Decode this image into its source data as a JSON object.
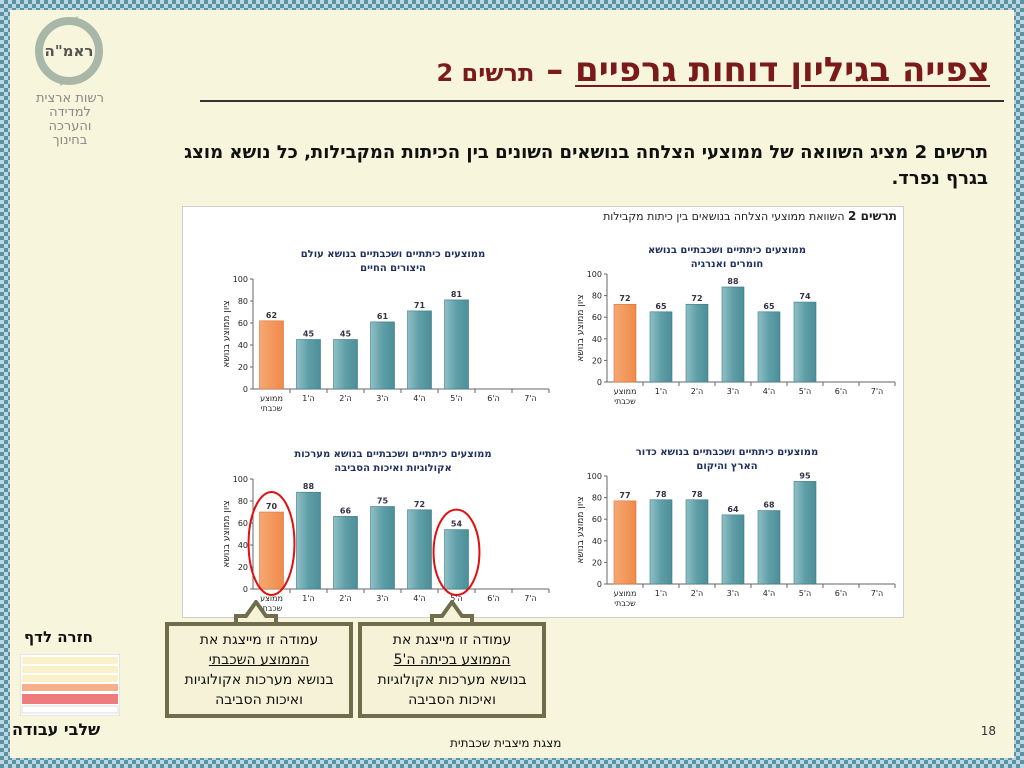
{
  "logo": {
    "text": "ראמ\"ה",
    "org": [
      "רשות ארצית",
      "למדידה",
      "והערכה",
      "בחינוך"
    ]
  },
  "title": {
    "main": "צפייה בגיליון דוחות גרפיים",
    "dash": " – ",
    "sub": "תרשים 2"
  },
  "description": "תרשים 2 מציג השוואה של ממוצעי הצלחה בנושאים השונים בין הכיתות המקבילות, כל נושא מוצג בגרף נפרד.",
  "sheet": {
    "title_bold": "תרשים 2",
    "title_rest": " השוואת ממוצעי הצלחה בנושאים בין כיתות מקבילות"
  },
  "colors": {
    "school_bar": "#f08a4b",
    "class_bar": "#4b8f98",
    "circle": "#e01010",
    "callout_border": "#6f6d4c"
  },
  "chart_data": [
    {
      "type": "bar",
      "title": "ממוצעים כיתתיים ושכבתיים בנושא חומרים ואנרגיה",
      "ylabel": "ציון ממוצע בנושא",
      "ylim": [
        0,
        100
      ],
      "yticks": [
        "0",
        "20",
        "40",
        "60",
        "80",
        "100"
      ],
      "categories": [
        "ממוצע שכבתי",
        "ה'1",
        "ה'2",
        "ה'3",
        "ה'4",
        "ה'5",
        "ה'6",
        "ה'7"
      ],
      "values": [
        72,
        65,
        72,
        88,
        65,
        74,
        null,
        null
      ],
      "labels": [
        "72",
        "65",
        "72",
        "88",
        "65",
        "74",
        "",
        ""
      ]
    },
    {
      "type": "bar",
      "title": "ממוצעים כיתתיים ושכבתיים בנושא עולם היצורים החיים",
      "ylabel": "ציון ממוצע בנושא",
      "ylim": [
        0,
        100
      ],
      "yticks": [
        "0",
        "20",
        "40",
        "60",
        "80",
        "100"
      ],
      "categories": [
        "ממוצע שכבתי",
        "ה'1",
        "ה'2",
        "ה'3",
        "ה'4",
        "ה'5",
        "ה'6",
        "ה'7"
      ],
      "values": [
        62,
        45,
        45,
        61,
        71,
        81,
        null,
        null
      ],
      "labels": [
        "62",
        "45",
        "45",
        "61",
        "71",
        "81",
        "",
        ""
      ]
    },
    {
      "type": "bar",
      "title": "ממוצעים כיתתיים ושכבתיים בנושא כדור הארץ והיקום",
      "ylabel": "ציון ממוצע בנושא",
      "ylim": [
        0,
        100
      ],
      "yticks": [
        "0",
        "20",
        "40",
        "60",
        "80",
        "100"
      ],
      "categories": [
        "ממוצע שכבתי",
        "ה'1",
        "ה'2",
        "ה'3",
        "ה'4",
        "ה'5",
        "ה'6",
        "ה'7"
      ],
      "values": [
        77,
        78,
        78,
        64,
        68,
        95,
        null,
        null
      ],
      "labels": [
        "77",
        "78",
        "78",
        "64",
        "68",
        "95",
        "",
        ""
      ]
    },
    {
      "type": "bar",
      "title": "ממוצעים כיתתיים ושכבתיים בנושא מערכות אקולוגיות ואיכות הסביבה",
      "ylabel": "ציון ממוצע בנושא",
      "ylim": [
        0,
        100
      ],
      "yticks": [
        "0",
        "20",
        "40",
        "60",
        "80",
        "100"
      ],
      "categories": [
        "ממוצע שכבתי",
        "ה'1",
        "ה'2",
        "ה'3",
        "ה'4",
        "ה'5",
        "ה'6",
        "ה'7"
      ],
      "values": [
        70,
        88,
        66,
        75,
        72,
        54,
        null,
        null
      ],
      "labels": [
        "70",
        "88",
        "66",
        "75",
        "72",
        "54",
        "",
        ""
      ],
      "highlighted": [
        "ממוצע שכבתי",
        "ה'5"
      ]
    }
  ],
  "callouts": {
    "right": {
      "line1": "עמודה זו מייצגת את",
      "line2": "הממוצע בכיתה ה'5",
      "line3": "בנושא מערכות אקולוגיות",
      "line4": "ואיכות הסביבה"
    },
    "left": {
      "line1": "עמודה זו מייצגת את",
      "line2": "הממוצע השכבתי",
      "line3": "בנושא מערכות אקולוגיות",
      "line4": "ואיכות הסביבה"
    }
  },
  "nav": {
    "back": "חזרה  לדף",
    "stages": "שלבי עבודה"
  },
  "page_number": "18",
  "footer": "מצגת מיצבית שכבתית"
}
